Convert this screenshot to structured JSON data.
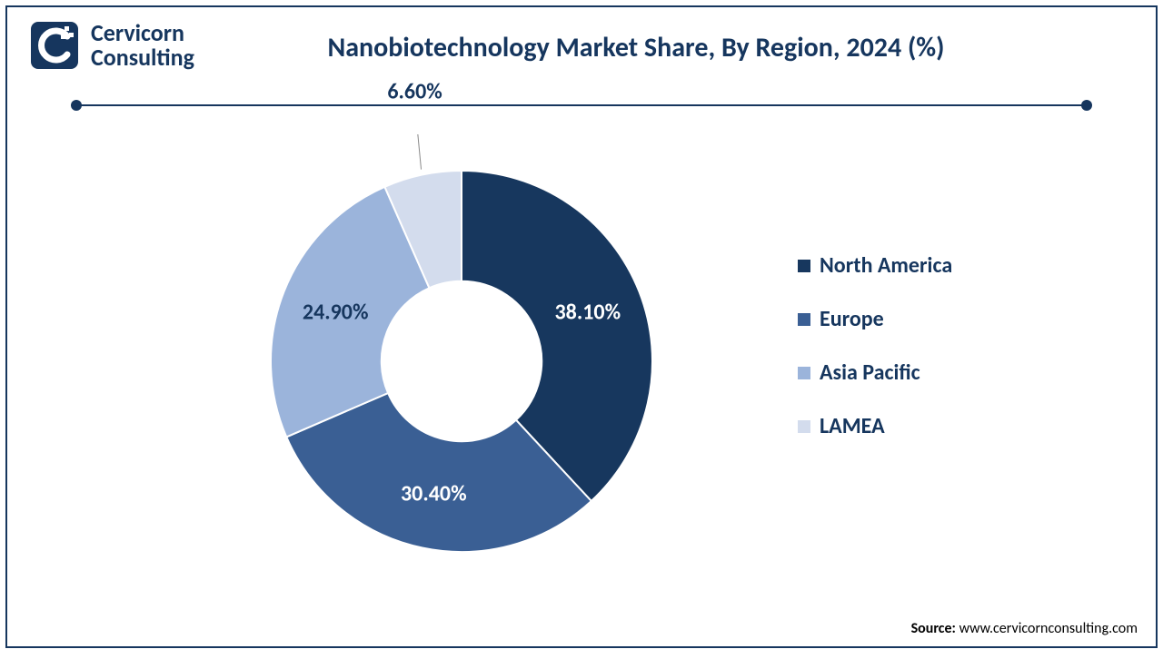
{
  "brand": {
    "line1": "Cervicorn",
    "line2": "Consulting",
    "logo_bg": "#16365e",
    "logo_fg": "#ffffff"
  },
  "title": "Nanobiotechnology Market Share, By Region, 2024 (%)",
  "divider": {
    "color": "#16365e"
  },
  "chart": {
    "type": "donut",
    "inner_radius_ratio": 0.42,
    "background": "#ffffff",
    "series": [
      {
        "name": "North America",
        "value": 38.1,
        "color": "#17375e",
        "label": "38.10%",
        "label_color": "#ffffff"
      },
      {
        "name": "Europe",
        "value": 30.4,
        "color": "#3a5f94",
        "label": "30.40%",
        "label_color": "#ffffff"
      },
      {
        "name": "Asia Pacific",
        "value": 24.9,
        "color": "#9bb4db",
        "label": "24.90%",
        "label_color": "#16365e"
      },
      {
        "name": "LAMEA",
        "value": 6.6,
        "color": "#d3dced",
        "label": "6.60%",
        "label_color": "#16365e",
        "label_outside": true
      }
    ],
    "start_angle_deg": -90,
    "label_fontsize": 24,
    "label_fontweight": 700
  },
  "legend": {
    "fontsize": 24,
    "fontweight": 700,
    "text_color": "#16365e"
  },
  "source": {
    "label": "Source:",
    "url": "www.cervicornconsulting.com"
  }
}
